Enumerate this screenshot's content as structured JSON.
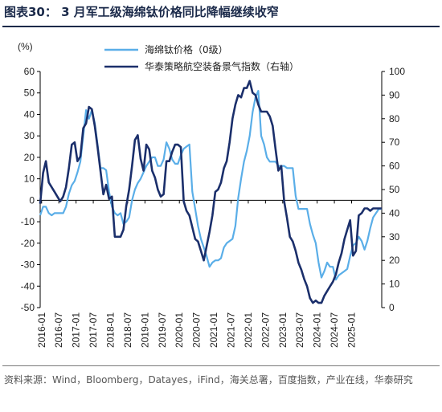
{
  "header": {
    "title": "图表30：  3 月军工级海绵钛价格同比降幅继续收窄"
  },
  "footer": {
    "source": "资料来源：Wind，Bloomberg，Datayes，iFind，海关总署，百度指数，产业在线，华泰研究"
  },
  "chart_data": {
    "type": "line",
    "title": "",
    "y_left_label": "(%)",
    "ylim_left": [
      -50,
      60
    ],
    "ylim_right": [
      0,
      100
    ],
    "y_left_ticks": [
      "60",
      "50",
      "40",
      "30",
      "20",
      "10",
      "0",
      "-10",
      "-20",
      "-30",
      "-40",
      "-50"
    ],
    "y_right_ticks": [
      "100",
      "90",
      "80",
      "70",
      "60",
      "50",
      "40",
      "30",
      "20",
      "10",
      "0"
    ],
    "x_ticks": [
      "2016-01",
      "2016-07",
      "2017-01",
      "2017-07",
      "2018-01",
      "2018-07",
      "2019-01",
      "2019-07",
      "2020-01",
      "2020-07",
      "2021-01",
      "2021-07",
      "2022-01",
      "2022-07",
      "2023-01",
      "2023-07",
      "2024-01",
      "2024-07",
      "2025-01"
    ],
    "legend_position": "top",
    "colors": {
      "sponge": "#5aaee8",
      "index": "#1b2f6b",
      "axis": "#000000"
    },
    "series": [
      {
        "name": "海绵钛价格（0级）",
        "axis": "left",
        "points": [
          [
            0,
            -7
          ],
          [
            1,
            -3
          ],
          [
            2,
            -3
          ],
          [
            3,
            -6
          ],
          [
            4,
            -7
          ],
          [
            5,
            -6
          ],
          [
            6,
            -6
          ],
          [
            7,
            -6
          ],
          [
            8,
            -6
          ],
          [
            9,
            -3
          ],
          [
            10,
            3
          ],
          [
            11,
            7
          ],
          [
            12,
            9
          ],
          [
            13,
            13
          ],
          [
            14,
            18
          ],
          [
            15,
            30
          ],
          [
            16,
            42
          ],
          [
            17,
            38
          ],
          [
            18,
            42
          ],
          [
            19,
            36
          ],
          [
            20,
            26
          ],
          [
            21,
            15
          ],
          [
            22,
            15
          ],
          [
            23,
            14
          ],
          [
            24,
            4
          ],
          [
            25,
            -3
          ],
          [
            26,
            -6
          ],
          [
            27,
            -7
          ],
          [
            28,
            -6
          ],
          [
            29,
            -11
          ],
          [
            30,
            -10
          ],
          [
            31,
            -8
          ],
          [
            32,
            0
          ],
          [
            33,
            5
          ],
          [
            34,
            8
          ],
          [
            35,
            10
          ],
          [
            36,
            13
          ],
          [
            37,
            16
          ],
          [
            38,
            18
          ],
          [
            39,
            20
          ],
          [
            40,
            20
          ],
          [
            41,
            16
          ],
          [
            42,
            16
          ],
          [
            43,
            19
          ],
          [
            44,
            27
          ],
          [
            45,
            24
          ],
          [
            46,
            19
          ],
          [
            47,
            17
          ],
          [
            48,
            17
          ],
          [
            49,
            21
          ],
          [
            50,
            24
          ],
          [
            51,
            25
          ],
          [
            52,
            26
          ],
          [
            53,
            4
          ],
          [
            54,
            -4
          ],
          [
            55,
            -12
          ],
          [
            56,
            -18
          ],
          [
            57,
            -22
          ],
          [
            58,
            -26
          ],
          [
            59,
            -31
          ],
          [
            60,
            -29
          ],
          [
            61,
            -28
          ],
          [
            62,
            -28
          ],
          [
            63,
            -27
          ],
          [
            64,
            -22
          ],
          [
            65,
            -20
          ],
          [
            66,
            -19
          ],
          [
            67,
            -18
          ],
          [
            68,
            -12
          ],
          [
            69,
            1
          ],
          [
            70,
            10
          ],
          [
            71,
            18
          ],
          [
            72,
            23
          ],
          [
            73,
            30
          ],
          [
            74,
            41
          ],
          [
            75,
            48
          ],
          [
            76,
            51
          ],
          [
            77,
            30
          ],
          [
            78,
            26
          ],
          [
            79,
            20
          ],
          [
            80,
            18
          ],
          [
            81,
            18
          ],
          [
            82,
            18
          ],
          [
            83,
            16
          ],
          [
            84,
            16
          ],
          [
            85,
            16
          ],
          [
            86,
            15
          ],
          [
            87,
            15
          ],
          [
            88,
            15
          ],
          [
            89,
            2
          ],
          [
            90,
            -4
          ],
          [
            91,
            -4
          ],
          [
            92,
            -4
          ],
          [
            93,
            -4
          ],
          [
            94,
            -11
          ],
          [
            95,
            -16
          ],
          [
            96,
            -20
          ],
          [
            97,
            -29
          ],
          [
            98,
            -36
          ],
          [
            99,
            -33
          ],
          [
            100,
            -29
          ],
          [
            101,
            -31
          ],
          [
            102,
            -31
          ],
          [
            103,
            -37
          ],
          [
            104,
            -35
          ],
          [
            105,
            -34
          ],
          [
            106,
            -33
          ],
          [
            107,
            -32
          ],
          [
            108,
            -26
          ],
          [
            109,
            -21
          ],
          [
            110,
            -20
          ],
          [
            111,
            -17
          ],
          [
            112,
            -19
          ],
          [
            113,
            -23
          ],
          [
            114,
            -19
          ],
          [
            115,
            -13
          ],
          [
            116,
            -8
          ],
          [
            117,
            -6
          ],
          [
            118,
            -4
          ],
          [
            119,
            -4
          ]
        ]
      },
      {
        "name": "华泰策略航空装备景气指数（右轴）",
        "axis": "right",
        "points": [
          [
            0,
            44
          ],
          [
            1,
            57
          ],
          [
            2,
            62
          ],
          [
            3,
            53
          ],
          [
            4,
            51
          ],
          [
            5,
            49
          ],
          [
            6,
            47
          ],
          [
            7,
            45
          ],
          [
            8,
            47
          ],
          [
            9,
            51
          ],
          [
            10,
            59
          ],
          [
            11,
            69
          ],
          [
            12,
            70
          ],
          [
            13,
            62
          ],
          [
            14,
            64
          ],
          [
            15,
            76
          ],
          [
            16,
            78
          ],
          [
            17,
            85
          ],
          [
            18,
            84
          ],
          [
            19,
            77
          ],
          [
            20,
            68
          ],
          [
            21,
            58
          ],
          [
            22,
            48
          ],
          [
            23,
            52
          ],
          [
            24,
            46
          ],
          [
            25,
            47
          ],
          [
            26,
            30
          ],
          [
            27,
            30
          ],
          [
            28,
            30
          ],
          [
            29,
            33
          ],
          [
            30,
            43
          ],
          [
            31,
            50
          ],
          [
            32,
            60
          ],
          [
            33,
            71
          ],
          [
            34,
            73
          ],
          [
            35,
            63
          ],
          [
            36,
            58
          ],
          [
            37,
            69
          ],
          [
            38,
            67
          ],
          [
            39,
            58
          ],
          [
            40,
            55
          ],
          [
            41,
            50
          ],
          [
            42,
            47
          ],
          [
            43,
            48
          ],
          [
            44,
            62
          ],
          [
            45,
            62
          ],
          [
            46,
            66
          ],
          [
            47,
            69
          ],
          [
            48,
            69
          ],
          [
            49,
            68
          ],
          [
            50,
            45
          ],
          [
            51,
            41
          ],
          [
            52,
            39
          ],
          [
            53,
            34
          ],
          [
            54,
            29
          ],
          [
            55,
            28
          ],
          [
            56,
            24
          ],
          [
            57,
            20
          ],
          [
            58,
            26
          ],
          [
            59,
            32
          ],
          [
            60,
            39
          ],
          [
            61,
            49
          ],
          [
            62,
            50
          ],
          [
            63,
            53
          ],
          [
            64,
            59
          ],
          [
            65,
            62
          ],
          [
            66,
            70
          ],
          [
            67,
            80
          ],
          [
            68,
            86
          ],
          [
            69,
            90
          ],
          [
            70,
            89
          ],
          [
            71,
            93
          ],
          [
            72,
            93
          ],
          [
            73,
            96
          ],
          [
            74,
            91
          ],
          [
            75,
            90
          ],
          [
            76,
            86
          ],
          [
            77,
            83
          ],
          [
            78,
            83
          ],
          [
            79,
            83
          ],
          [
            80,
            81
          ],
          [
            81,
            77
          ],
          [
            82,
            67
          ],
          [
            83,
            58
          ],
          [
            84,
            60
          ],
          [
            85,
            45
          ],
          [
            86,
            38
          ],
          [
            87,
            30
          ],
          [
            88,
            28
          ],
          [
            89,
            24
          ],
          [
            90,
            19
          ],
          [
            91,
            16
          ],
          [
            92,
            12
          ],
          [
            93,
            9
          ],
          [
            94,
            4
          ],
          [
            95,
            2
          ],
          [
            96,
            3
          ],
          [
            97,
            2
          ],
          [
            98,
            2
          ],
          [
            99,
            5
          ],
          [
            100,
            7
          ],
          [
            101,
            9
          ],
          [
            102,
            11
          ],
          [
            103,
            14
          ],
          [
            104,
            19
          ],
          [
            105,
            23
          ],
          [
            106,
            29
          ],
          [
            107,
            33
          ],
          [
            108,
            37
          ],
          [
            109,
            22
          ],
          [
            110,
            24
          ],
          [
            111,
            39
          ],
          [
            112,
            40
          ],
          [
            113,
            42
          ],
          [
            114,
            42
          ],
          [
            115,
            41
          ],
          [
            116,
            42
          ],
          [
            117,
            42
          ],
          [
            118,
            42
          ],
          [
            119,
            42
          ]
        ]
      }
    ]
  }
}
